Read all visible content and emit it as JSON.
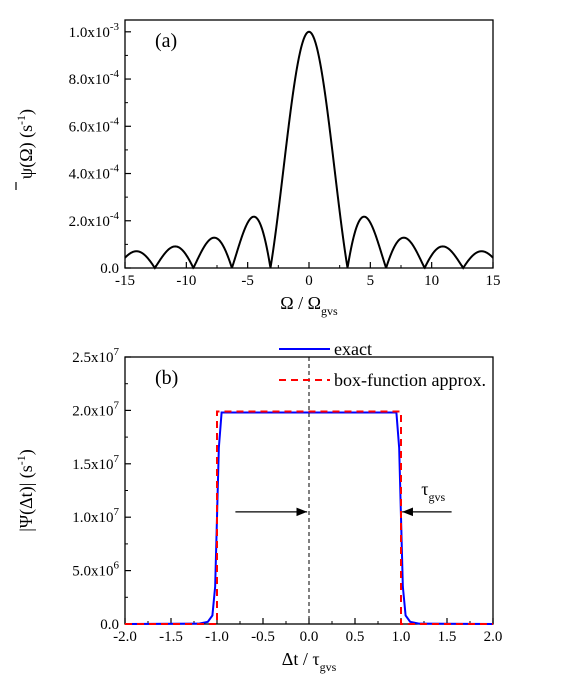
{
  "chart_data": [
    {
      "type": "line",
      "panel_label": "(a)",
      "xlabel": {
        "main": "Ω / Ω",
        "sub": "gvs"
      },
      "ylabel": {
        "main": "ψ(Ω)  (s",
        "sup": "-1",
        "tail": ")"
      },
      "xlim": [
        -15,
        15
      ],
      "ylim": [
        0,
        0.00105
      ],
      "x_ticks": [
        {
          "v": -15,
          "label": "-15"
        },
        {
          "v": -10,
          "label": "-10"
        },
        {
          "v": -5,
          "label": "-5"
        },
        {
          "v": 0,
          "label": "0"
        },
        {
          "v": 5,
          "label": "5"
        },
        {
          "v": 10,
          "label": "10"
        },
        {
          "v": 15,
          "label": "15"
        }
      ],
      "y_ticks": [
        {
          "v": 0,
          "label": "0.0",
          "mant": "0.0",
          "exp": ""
        },
        {
          "v": 0.0002,
          "label": "2.0x10-4",
          "mant": "2.0x10",
          "exp": "-4"
        },
        {
          "v": 0.0004,
          "label": "4.0x10-4",
          "mant": "4.0x10",
          "exp": "-4"
        },
        {
          "v": 0.0006,
          "label": "6.0x10-4",
          "mant": "6.0x10",
          "exp": "-4"
        },
        {
          "v": 0.0008,
          "label": "8.0x10-4",
          "mant": "8.0x10",
          "exp": "-4"
        },
        {
          "v": 0.001,
          "label": "1.0x10-3",
          "mant": "1.0x10",
          "exp": "-3"
        }
      ],
      "series": [
        {
          "description": "|sinc(x / π)| spectrum, peak 1.0e-3 at x = 0, zeros at multiples of π",
          "peak": 0.001,
          "zero_spacing": 3.1416,
          "color": "#000000"
        }
      ],
      "sample_points": {
        "x": [
          -15,
          -12.2,
          -10.9,
          -9.42,
          -7.9,
          -6.28,
          -4.6,
          -3.14,
          0,
          3.14,
          4.6,
          6.28,
          7.9,
          9.42,
          10.9,
          12.2,
          15
        ],
        "y": [
          4e-05,
          0,
          9e-05,
          0,
          0.00013,
          0,
          0.00022,
          0,
          0.001,
          0,
          0.00022,
          0,
          0.00013,
          0,
          9e-05,
          0,
          4e-05
        ]
      }
    },
    {
      "type": "line",
      "panel_label": "(b)",
      "xlabel": {
        "main": "Δt / τ",
        "sub": "gvs"
      },
      "ylabel": {
        "main": "|Ψ(Δt)|  (s",
        "sup": "-1",
        "tail": ")"
      },
      "xlim": [
        -2,
        2
      ],
      "ylim": [
        0,
        25000000
      ],
      "x_ticks": [
        {
          "v": -2,
          "label": "-2.0"
        },
        {
          "v": -1.5,
          "label": "-1.5"
        },
        {
          "v": -1,
          "label": "-1.0"
        },
        {
          "v": -0.5,
          "label": "-0.5"
        },
        {
          "v": 0,
          "label": "0.0"
        },
        {
          "v": 0.5,
          "label": "0.5"
        },
        {
          "v": 1,
          "label": "1.0"
        },
        {
          "v": 1.5,
          "label": "1.5"
        },
        {
          "v": 2,
          "label": "2.0"
        }
      ],
      "y_ticks": [
        {
          "v": 0,
          "label": "0.0",
          "mant": "0.0",
          "exp": ""
        },
        {
          "v": 5000000,
          "label": "5.0x106",
          "mant": "5.0x10",
          "exp": "6"
        },
        {
          "v": 10000000,
          "label": "1.0x107",
          "mant": "1.0x10",
          "exp": "7"
        },
        {
          "v": 15000000,
          "label": "1.5x107",
          "mant": "1.5x10",
          "exp": "7"
        },
        {
          "v": 20000000,
          "label": "2.0x107",
          "mant": "2.0x10",
          "exp": "7"
        },
        {
          "v": 25000000,
          "label": "2.5x107",
          "mant": "2.5x10",
          "exp": "7"
        }
      ],
      "series": [
        {
          "name": "exact",
          "color": "#0000ff",
          "style": "solid",
          "x": [
            -2,
            -1.2,
            -1.1,
            -1.05,
            -1.02,
            -1.0,
            -0.98,
            -0.95,
            0,
            0.95,
            0.98,
            1.0,
            1.02,
            1.05,
            1.1,
            1.2,
            2
          ],
          "y": [
            0,
            30000,
            200000,
            800000,
            3500000,
            10000000,
            16500000,
            19800000,
            19800000,
            19800000,
            16500000,
            10000000,
            3500000,
            800000,
            200000,
            30000,
            0
          ]
        },
        {
          "name": "box-function approx.",
          "color": "#ff0000",
          "style": "dashed",
          "x": [
            -2,
            -1,
            -1,
            1,
            1,
            2
          ],
          "y": [
            0,
            0,
            19900000,
            19900000,
            0,
            0
          ]
        }
      ],
      "annotation": {
        "main": "τ",
        "sub": "gvs",
        "y": 10500000,
        "arrow_from_x": [
          -0.8,
          0.9
        ],
        "arrow_to_x": [
          -0.02,
          0.98
        ]
      }
    }
  ]
}
